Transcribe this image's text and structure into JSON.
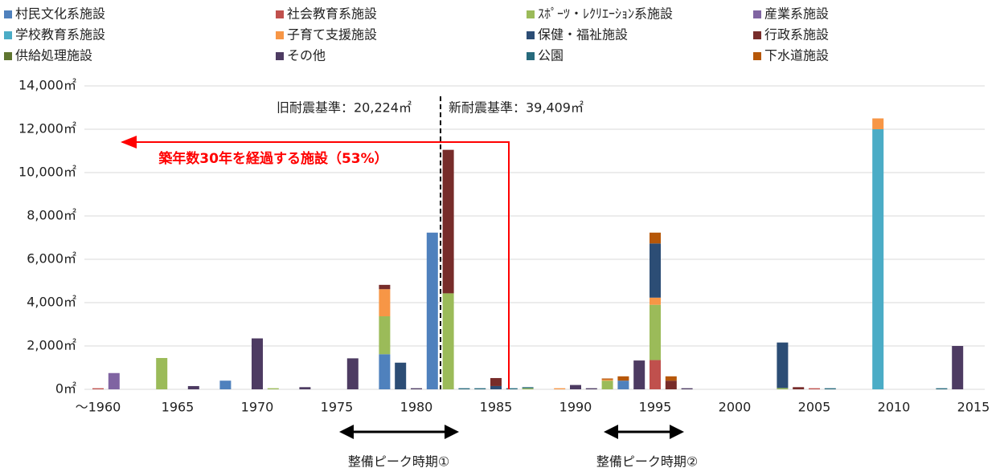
{
  "chart_data": {
    "type": "stacked_bar",
    "categories": [
      "～1960",
      null,
      null,
      null,
      null,
      "1965",
      null,
      null,
      null,
      null,
      "1970",
      null,
      null,
      null,
      null,
      "1975",
      null,
      null,
      null,
      null,
      "1980",
      null,
      null,
      null,
      null,
      "1985",
      null,
      null,
      null,
      null,
      "1990",
      null,
      null,
      null,
      null,
      "1995",
      null,
      null,
      null,
      null,
      "2000",
      null,
      null,
      null,
      null,
      "2005",
      null,
      null,
      null,
      null,
      "2010",
      null,
      null,
      null,
      null,
      "2015"
    ],
    "series": [
      {
        "name": "村民文化系施設",
        "color": "#4f81bd",
        "values": [
          0,
          0,
          0,
          0,
          0,
          0,
          0,
          0,
          400,
          0,
          0,
          0,
          0,
          0,
          0,
          0,
          0,
          0,
          1620,
          0,
          0,
          7230,
          0,
          0,
          0,
          0,
          0,
          0,
          0,
          0,
          0,
          0,
          0,
          400,
          0,
          0,
          0,
          0,
          0,
          0,
          0,
          0,
          0,
          0,
          0,
          0,
          0,
          0,
          0,
          0,
          0,
          0,
          0,
          0,
          0,
          0
        ]
      },
      {
        "name": "社会教育系施設",
        "color": "#c0504d",
        "values": [
          50,
          0,
          0,
          0,
          0,
          0,
          0,
          0,
          0,
          0,
          0,
          0,
          0,
          0,
          0,
          0,
          0,
          0,
          0,
          0,
          0,
          0,
          0,
          0,
          0,
          0,
          0,
          0,
          0,
          0,
          0,
          0,
          0,
          0,
          0,
          1350,
          0,
          0,
          0,
          0,
          0,
          0,
          0,
          0,
          0,
          50,
          0,
          0,
          0,
          0,
          0,
          0,
          0,
          0,
          0,
          0
        ]
      },
      {
        "name": "ｽﾎﾟｰﾂ・ﾚｸﾘｴｰｼｮﾝ系施設",
        "color": "#9bbb59",
        "values": [
          0,
          0,
          0,
          0,
          1445,
          0,
          0,
          0,
          0,
          0,
          0,
          50,
          0,
          0,
          0,
          0,
          0,
          0,
          1750,
          0,
          0,
          0,
          4430,
          0,
          0,
          0,
          0,
          50,
          0,
          0,
          0,
          0,
          400,
          0,
          0,
          2550,
          0,
          0,
          0,
          0,
          0,
          0,
          0,
          60,
          0,
          0,
          0,
          0,
          0,
          0,
          0,
          0,
          0,
          0,
          0,
          0
        ]
      },
      {
        "name": "産業系施設",
        "color": "#8064a2",
        "values": [
          0,
          750,
          0,
          0,
          0,
          0,
          0,
          0,
          0,
          0,
          0,
          0,
          0,
          0,
          0,
          0,
          0,
          0,
          0,
          0,
          0,
          0,
          0,
          0,
          0,
          0,
          0,
          0,
          0,
          0,
          0,
          0,
          0,
          0,
          0,
          0,
          0,
          0,
          0,
          0,
          0,
          0,
          0,
          0,
          0,
          0,
          0,
          0,
          0,
          0,
          0,
          0,
          0,
          0,
          0,
          0
        ]
      },
      {
        "name": "学校教育系施設",
        "color": "#4bacc6",
        "values": [
          0,
          0,
          0,
          0,
          0,
          0,
          0,
          0,
          0,
          0,
          0,
          0,
          0,
          0,
          0,
          0,
          0,
          0,
          0,
          0,
          0,
          0,
          0,
          0,
          0,
          0,
          0,
          0,
          0,
          0,
          0,
          0,
          0,
          0,
          0,
          0,
          0,
          0,
          0,
          0,
          0,
          0,
          0,
          0,
          0,
          0,
          0,
          0,
          0,
          12000,
          0,
          0,
          0,
          0,
          0,
          0
        ]
      },
      {
        "name": "子育て支援施設",
        "color": "#f79646",
        "values": [
          0,
          0,
          0,
          0,
          0,
          0,
          0,
          0,
          0,
          0,
          0,
          0,
          0,
          0,
          0,
          0,
          0,
          0,
          1250,
          0,
          0,
          0,
          0,
          0,
          0,
          0,
          0,
          0,
          0,
          50,
          0,
          0,
          50,
          0,
          0,
          330,
          0,
          0,
          0,
          0,
          0,
          0,
          0,
          0,
          0,
          0,
          0,
          0,
          0,
          500,
          0,
          0,
          0,
          0,
          0,
          0
        ]
      },
      {
        "name": "保健・福祉施設",
        "color": "#2c4d75",
        "values": [
          0,
          0,
          0,
          0,
          0,
          0,
          0,
          0,
          0,
          0,
          0,
          0,
          0,
          0,
          0,
          0,
          0,
          0,
          0,
          1230,
          0,
          0,
          0,
          0,
          0,
          150,
          0,
          0,
          0,
          0,
          0,
          0,
          0,
          0,
          0,
          2500,
          0,
          0,
          0,
          0,
          0,
          0,
          0,
          2100,
          0,
          0,
          0,
          0,
          0,
          0,
          0,
          0,
          0,
          0,
          0,
          0
        ]
      },
      {
        "name": "行政系施設",
        "color": "#772c2a",
        "values": [
          0,
          0,
          0,
          0,
          0,
          0,
          0,
          0,
          0,
          0,
          0,
          0,
          0,
          0,
          0,
          0,
          0,
          0,
          200,
          0,
          0,
          0,
          6620,
          0,
          0,
          370,
          0,
          0,
          0,
          0,
          0,
          0,
          0,
          0,
          0,
          0,
          400,
          0,
          0,
          0,
          0,
          0,
          0,
          0,
          100,
          0,
          0,
          0,
          0,
          0,
          0,
          0,
          0,
          0,
          0,
          0
        ]
      },
      {
        "name": "供給処理施設",
        "color": "#5f7530",
        "values": [
          0,
          0,
          0,
          0,
          0,
          0,
          0,
          0,
          0,
          0,
          0,
          0,
          0,
          0,
          0,
          0,
          0,
          0,
          0,
          0,
          0,
          0,
          0,
          0,
          0,
          0,
          0,
          0,
          0,
          0,
          0,
          0,
          0,
          0,
          0,
          0,
          0,
          0,
          0,
          0,
          0,
          0,
          0,
          0,
          0,
          0,
          0,
          0,
          0,
          0,
          0,
          0,
          0,
          0,
          0,
          0
        ]
      },
      {
        "name": "その他",
        "color": "#4d3b62",
        "values": [
          0,
          0,
          0,
          0,
          0,
          0,
          150,
          0,
          0,
          0,
          2350,
          0,
          0,
          100,
          0,
          0,
          1430,
          0,
          0,
          0,
          50,
          0,
          0,
          0,
          0,
          0,
          0,
          0,
          0,
          0,
          200,
          50,
          0,
          0,
          1330,
          0,
          0,
          50,
          0,
          0,
          0,
          0,
          0,
          0,
          0,
          0,
          0,
          0,
          0,
          0,
          0,
          0,
          0,
          0,
          2000,
          0
        ]
      },
      {
        "name": "公園",
        "color": "#276a7c",
        "values": [
          0,
          0,
          0,
          0,
          0,
          0,
          0,
          0,
          0,
          0,
          0,
          0,
          0,
          0,
          0,
          0,
          0,
          0,
          0,
          0,
          0,
          0,
          0,
          50,
          50,
          0,
          50,
          50,
          0,
          0,
          0,
          0,
          0,
          0,
          0,
          0,
          0,
          0,
          0,
          0,
          0,
          0,
          0,
          0,
          0,
          0,
          50,
          0,
          0,
          0,
          0,
          0,
          0,
          50,
          0,
          0
        ]
      },
      {
        "name": "下水道施設",
        "color": "#b65708",
        "values": [
          0,
          0,
          0,
          0,
          0,
          0,
          0,
          0,
          0,
          0,
          0,
          0,
          0,
          0,
          0,
          0,
          0,
          0,
          0,
          0,
          0,
          0,
          0,
          0,
          0,
          0,
          0,
          0,
          0,
          0,
          0,
          0,
          50,
          200,
          0,
          500,
          200,
          0,
          0,
          0,
          0,
          0,
          0,
          0,
          0,
          0,
          0,
          0,
          0,
          0,
          0,
          0,
          0,
          0,
          0,
          0
        ]
      }
    ],
    "ylim": [
      0,
      14000
    ],
    "yticks": [
      {
        "value": 0,
        "label": "0㎡"
      },
      {
        "value": 2000,
        "label": "2,000㎡"
      },
      {
        "value": 4000,
        "label": "4,000㎡"
      },
      {
        "value": 6000,
        "label": "6,000㎡"
      },
      {
        "value": 8000,
        "label": "8,000㎡"
      },
      {
        "value": 10000,
        "label": "10,000㎡"
      },
      {
        "value": 12000,
        "label": "12,000㎡"
      },
      {
        "value": 14000,
        "label": "14,000㎡"
      }
    ],
    "grid": true,
    "annotations": {
      "old_standard": "旧耐震基準：20,224㎡",
      "new_standard": "新耐震基準：39,409㎡",
      "over_30": "築年数30年を経過する施設（53%）",
      "peak1": "整備ピーク時期①",
      "peak2": "整備ピーク時期②"
    }
  }
}
